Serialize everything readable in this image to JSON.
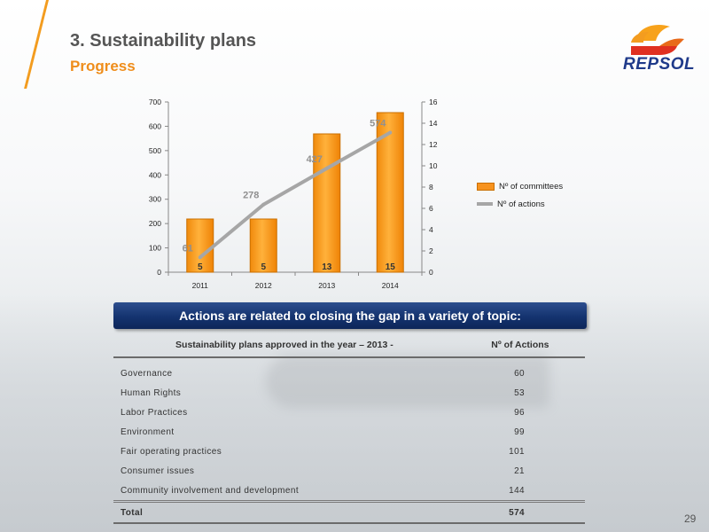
{
  "slide": {
    "title": "3. Sustainability plans",
    "subtitle": "Progress",
    "logo_text": "REPSOL",
    "page_number": "29",
    "accent_color": "#f39c1f",
    "brand_blue": "#1f3a8a"
  },
  "chart_data": {
    "type": "bar",
    "categories": [
      "2011",
      "2012",
      "2013",
      "2014"
    ],
    "series": [
      {
        "name": "Nº of committees",
        "type": "bar",
        "axis": "right",
        "values": [
          5,
          5,
          13,
          15
        ],
        "labels": [
          "5",
          "5",
          "13",
          "15"
        ],
        "color": "#f7931e"
      },
      {
        "name": "Nº of actions",
        "type": "line",
        "axis": "left",
        "values": [
          61,
          278,
          427,
          574
        ],
        "labels": [
          "61",
          "278",
          "427",
          "574"
        ],
        "color": "#a6a6a6"
      }
    ],
    "ylim_left": [
      0,
      700
    ],
    "ylim_right": [
      0,
      16
    ],
    "yticks_left": [
      "0",
      "100",
      "200",
      "300",
      "400",
      "500",
      "600",
      "700"
    ],
    "yticks_right": [
      "0",
      "2",
      "4",
      "6",
      "8",
      "10",
      "12",
      "14",
      "16"
    ],
    "legend_position": "right",
    "grid": false
  },
  "banner": {
    "text": "Actions are related to closing the gap in a variety of topic:"
  },
  "table": {
    "headers": [
      "Sustainability plans approved in the year – 2013 -",
      "Nº of Actions"
    ],
    "rows": [
      [
        "Governance",
        "60"
      ],
      [
        "Human Rights",
        "53"
      ],
      [
        "Labor Practices",
        "96"
      ],
      [
        "Environment",
        "99"
      ],
      [
        "Fair operating practices",
        "101"
      ],
      [
        "Consumer issues",
        "21"
      ],
      [
        "Community involvement and development",
        "144"
      ]
    ],
    "total": [
      "Total",
      "574"
    ]
  }
}
